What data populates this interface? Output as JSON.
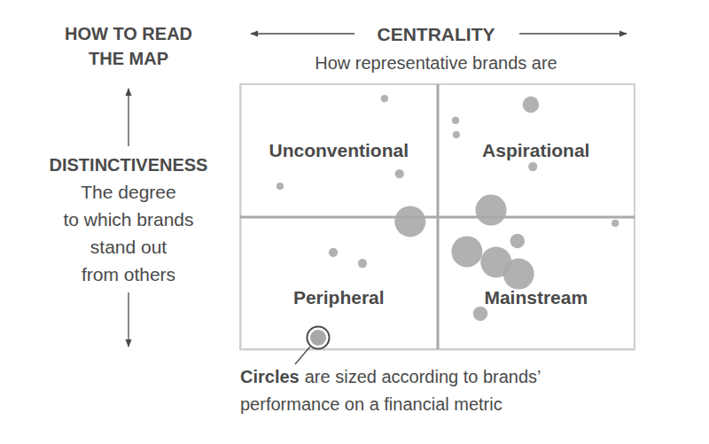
{
  "chart_data": {
    "type": "scatter",
    "title": [
      "HOW TO READ",
      "THE MAP"
    ],
    "x_label": "CENTRALITY",
    "x_sublabel": "How representative brands are",
    "y_label": "DISTINCTIVENESS",
    "y_sublabel": [
      "The degree",
      "to which brands",
      "stand out",
      "from others"
    ],
    "quadrant_labels": [
      "Unconventional",
      "Aspirational",
      "Peripheral",
      "Mainstream"
    ],
    "note": [
      "Circles",
      "are sized according to brands’",
      "performance on a financial metric"
    ],
    "x": [
      36.6,
      10.1,
      40.4,
      43.1,
      23.6,
      31.0,
      73.7,
      54.6,
      54.8,
      74.2,
      63.6,
      95.1,
      70.3,
      57.5,
      64.9,
      70.6,
      60.9
    ],
    "values": [
      94.6,
      61.5,
      66.2,
      48.2,
      36.5,
      32.4,
      92.3,
      86.3,
      80.9,
      68.9,
      52.5,
      47.5,
      40.8,
      36.8,
      32.8,
      28.4,
      13.4
    ],
    "sizes": [
      16,
      16,
      25,
      289,
      25,
      25,
      81,
      16,
      16,
      25,
      289,
      16,
      64,
      289,
      289,
      289,
      64
    ],
    "xlim": [
      0,
      100
    ],
    "ylim": [
      0,
      100
    ],
    "xticks": [
      50
    ],
    "yticks": [
      50
    ],
    "grid": true,
    "tick_labels": false,
    "color": "#a8a8a8"
  }
}
